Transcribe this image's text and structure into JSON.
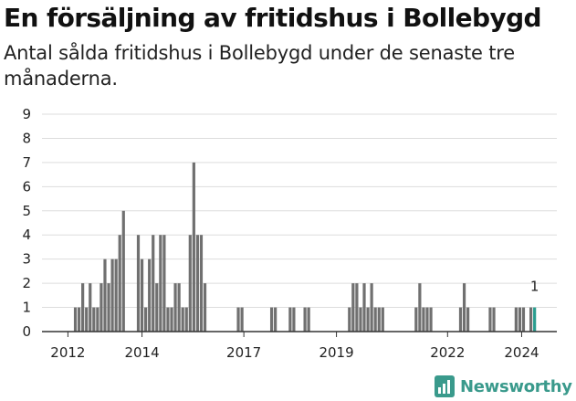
{
  "header": {
    "title": "En försäljning av fritidshus i Bollebygd",
    "subtitle": "Antal sålda fritidshus i Bollebygd under de senaste tre månaderna."
  },
  "brand": {
    "name": "Newsworthy",
    "color": "#3a9a8c"
  },
  "colors": {
    "bar": "#707070",
    "highlight": "#2a9d8f",
    "grid": "#dddddd"
  },
  "chart_data": {
    "type": "bar",
    "title": "En försäljning av fritidshus i Bollebygd",
    "subtitle": "Antal sålda fritidshus i Bollebygd under de senaste tre månaderna.",
    "xlabel": "",
    "ylabel": "",
    "x_ticks": [
      "2012",
      "2014",
      "2017",
      "2019",
      "2022",
      "2024"
    ],
    "x_tick_positions": [
      2012.5,
      2014.5,
      2017.25,
      2019.75,
      2022.75,
      2024.75
    ],
    "y_ticks": [
      0,
      1,
      2,
      3,
      4,
      5,
      6,
      7,
      8,
      9
    ],
    "ylim": [
      0,
      9
    ],
    "xlim": [
      2011.8,
      2025.7
    ],
    "grid": true,
    "highlight_label": "1",
    "highlight_index": 65,
    "x": [
      2012.7,
      2012.8,
      2012.9,
      2013.0,
      2013.1,
      2013.2,
      2013.3,
      2013.4,
      2013.5,
      2013.6,
      2013.7,
      2013.8,
      2013.9,
      2014.0,
      2014.4,
      2014.5,
      2014.6,
      2014.7,
      2014.8,
      2014.9,
      2015.0,
      2015.1,
      2015.2,
      2015.3,
      2015.4,
      2015.5,
      2015.6,
      2015.7,
      2015.8,
      2015.9,
      2016.0,
      2016.1,
      2016.2,
      2017.1,
      2017.2,
      2018.0,
      2018.1,
      2018.5,
      2018.6,
      2018.9,
      2019.0,
      2020.1,
      2020.2,
      2020.3,
      2020.4,
      2020.5,
      2020.6,
      2020.7,
      2020.8,
      2020.9,
      2021.0,
      2021.9,
      2022.0,
      2022.1,
      2022.2,
      2022.3,
      2023.1,
      2023.2,
      2023.3,
      2023.9,
      2024.0,
      2024.6,
      2024.7,
      2024.8,
      2025.0,
      2025.1
    ],
    "values": [
      1,
      1,
      2,
      1,
      2,
      1,
      1,
      2,
      3,
      2,
      3,
      3,
      4,
      5,
      4,
      3,
      1,
      3,
      4,
      2,
      4,
      4,
      1,
      1,
      2,
      2,
      1,
      1,
      4,
      7,
      4,
      4,
      2,
      1,
      1,
      1,
      1,
      1,
      1,
      1,
      1,
      1,
      2,
      2,
      1,
      2,
      1,
      2,
      1,
      1,
      1,
      1,
      2,
      1,
      1,
      1,
      1,
      2,
      1,
      1,
      1,
      1,
      1,
      1,
      1,
      1
    ]
  }
}
